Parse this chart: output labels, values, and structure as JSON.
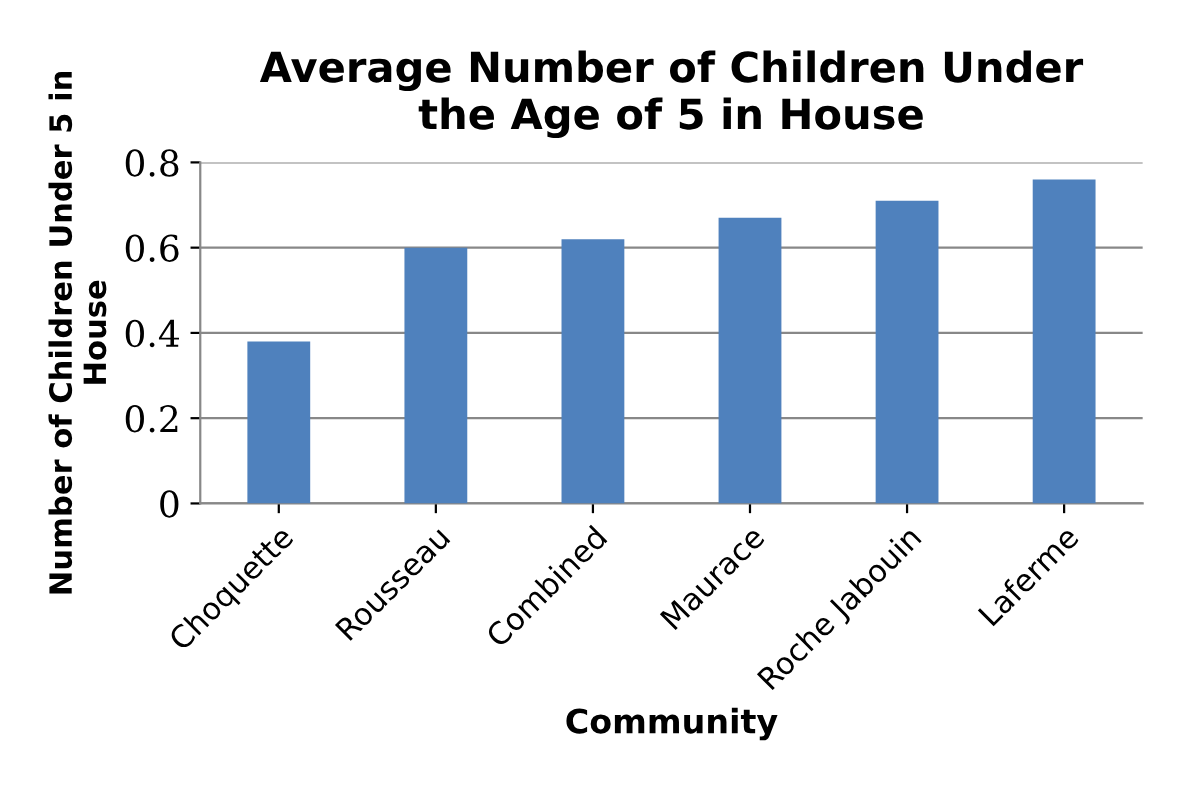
{
  "chart_data": {
    "type": "bar",
    "title": "Average Number of Children Under\nthe Age of 5 in House",
    "xlabel": "Community",
    "ylabel": "Number of Children Under 5 in\nHouse",
    "categories": [
      "Choquette",
      "Rousseau",
      "Combined",
      "Maurace",
      "Roche Jabouin",
      "Laferme"
    ],
    "values": [
      0.38,
      0.6,
      0.62,
      0.67,
      0.71,
      0.76
    ],
    "color": "#4f81bd",
    "ylim": [
      0,
      0.8
    ],
    "yticks": [
      {
        "value": 0,
        "label": "0"
      },
      0.2,
      0.4,
      0.6,
      0.8
    ],
    "grid": "y"
  }
}
